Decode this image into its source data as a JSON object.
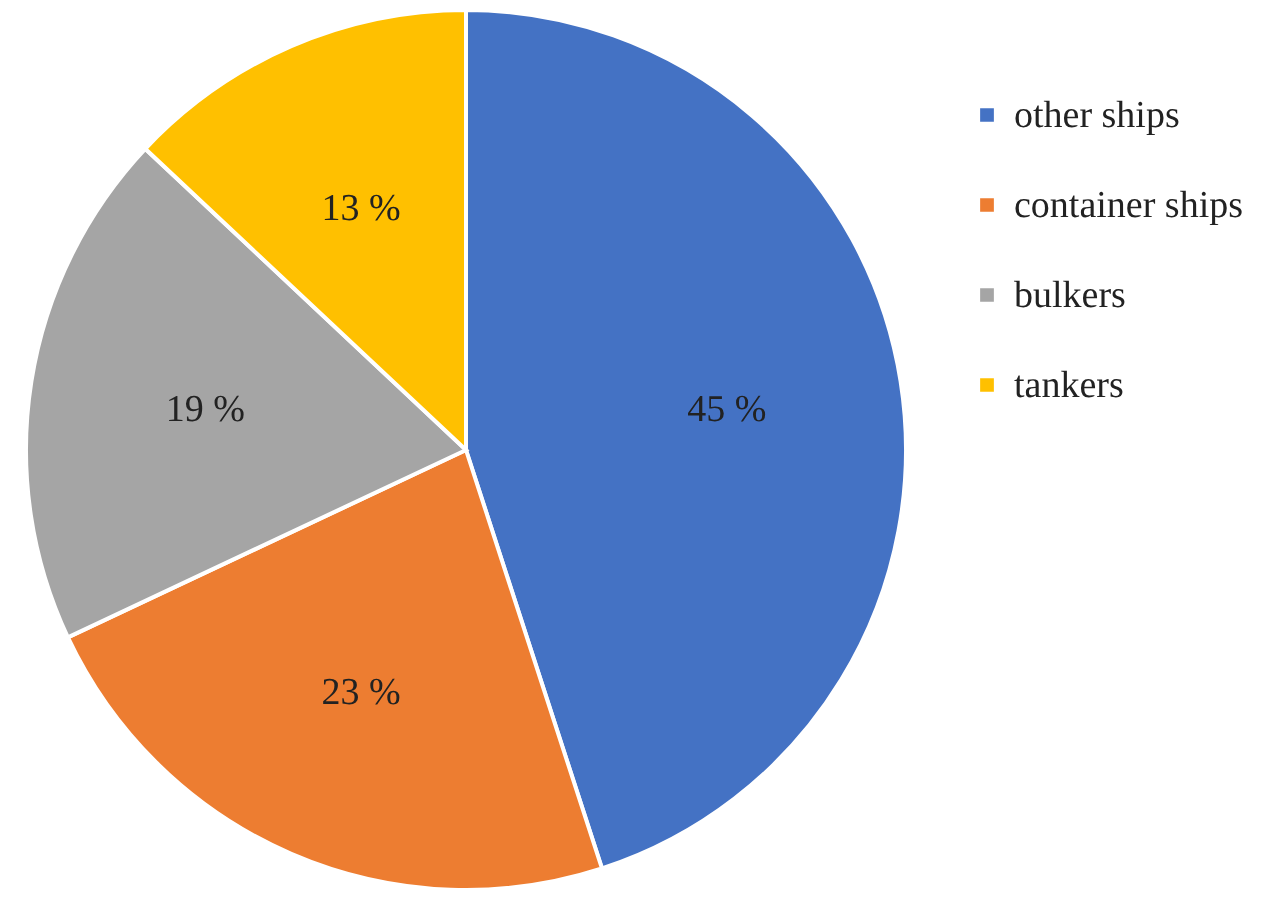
{
  "chart_data": {
    "type": "pie",
    "categories": [
      "other ships",
      "container ships",
      "bulkers",
      "tankers"
    ],
    "values": [
      45,
      23,
      19,
      13
    ],
    "colors": [
      "#4472c4",
      "#ed7d31",
      "#a5a5a5",
      "#ffc000"
    ],
    "value_labels": [
      "45 %",
      "23 %",
      "19 %",
      "13 %"
    ],
    "legend": "right"
  }
}
